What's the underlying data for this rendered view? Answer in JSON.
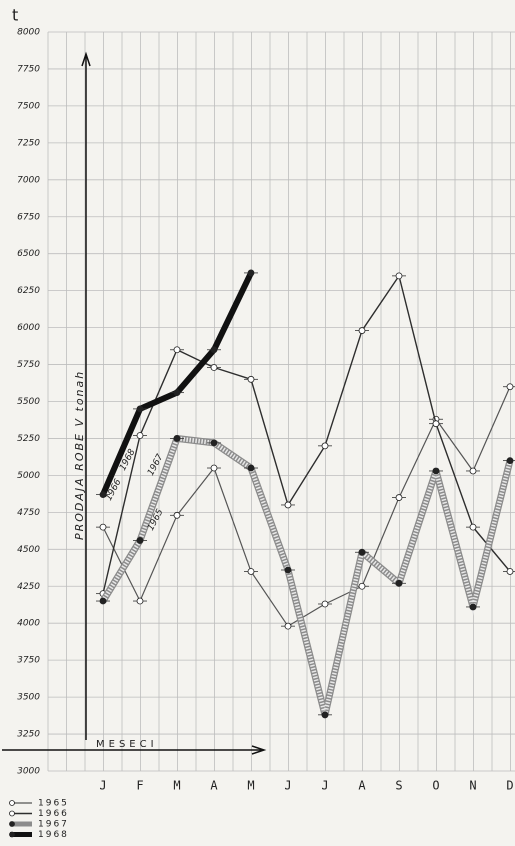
{
  "chart_data": {
    "type": "line",
    "y_label": "t",
    "axis_title": "PRODAJA ROBE V tonah",
    "x_title": "MESECI",
    "categories": [
      "J",
      "F",
      "M",
      "A",
      "M",
      "J",
      "J",
      "A",
      "S",
      "O",
      "N",
      "D"
    ],
    "series": [
      {
        "name": "1965",
        "color": "#555555",
        "values": [
          4650,
          4150,
          4730,
          5050,
          4350,
          3980,
          4130,
          4250,
          4850,
          5380,
          5030,
          5600
        ]
      },
      {
        "name": "1966",
        "color": "#2e2e2e",
        "values": [
          4200,
          5270,
          5850,
          5730,
          5650,
          4800,
          5200,
          5980,
          6350,
          5350,
          4650,
          4350
        ]
      },
      {
        "name": "1967",
        "color": "#8c8c8c",
        "values": [
          4150,
          4560,
          5250,
          5220,
          5050,
          4360,
          3380,
          4480,
          4270,
          5030,
          4110,
          5100
        ]
      },
      {
        "name": "1968",
        "color": "#111111",
        "values": [
          4870,
          5450,
          5560,
          5850,
          6370,
          null,
          null,
          null,
          null,
          null,
          null,
          null
        ]
      }
    ],
    "ylim": [
      3000,
      8000
    ],
    "yticks": [
      3000,
      3250,
      3500,
      3750,
      4000,
      4250,
      4500,
      4750,
      5000,
      5250,
      5500,
      5750,
      6000,
      6250,
      6500,
      6750,
      7000,
      7250,
      7500,
      7750,
      8000
    ],
    "grid": true
  }
}
